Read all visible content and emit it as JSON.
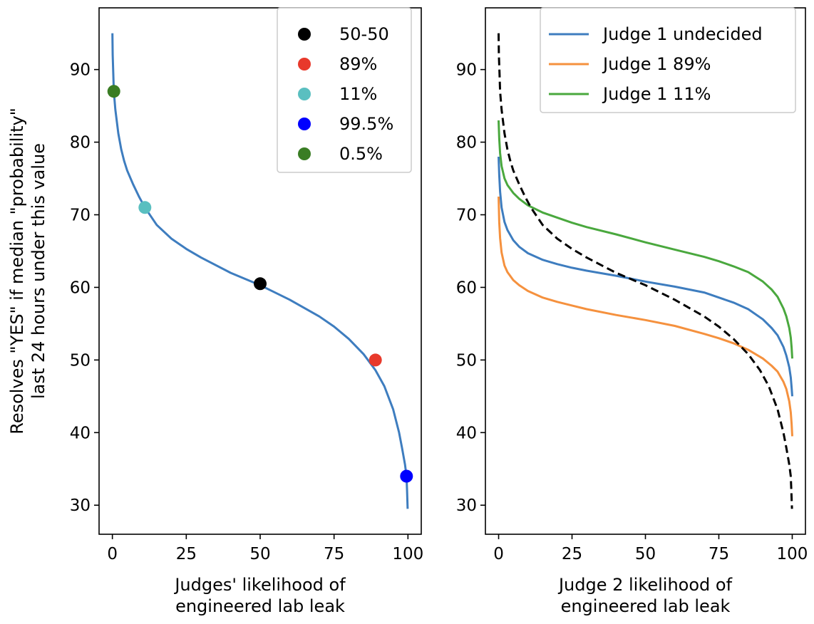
{
  "chart_data": [
    {
      "type": "line",
      "title": "",
      "xlabel": [
        "Judges' likelihood of",
        "engineered lab leak"
      ],
      "ylabel": [
        "Resolves \"YES\" if median \"probability\"",
        "last 24 hours under this value"
      ],
      "xlim": [
        -4.5,
        104.5
      ],
      "ylim": [
        26,
        98.5
      ],
      "xticks": [
        0,
        25,
        50,
        75,
        100
      ],
      "yticks": [
        30,
        40,
        50,
        60,
        70,
        80,
        90
      ],
      "grid": false,
      "legend_position": "top-right",
      "series": [
        {
          "kind": "line",
          "color": "#3e7dbf",
          "x": [
            0,
            0.05,
            0.1,
            0.3,
            0.5,
            1,
            2,
            3,
            4,
            5,
            7,
            9,
            11,
            15,
            20,
            25,
            30,
            40,
            50,
            60,
            70,
            75,
            80,
            85,
            89,
            92,
            95,
            97,
            98,
            99,
            99.5,
            99.7,
            99.9
          ],
          "y": [
            95,
            93.5,
            92,
            89.5,
            87,
            84.5,
            81.2,
            79,
            77.4,
            76.1,
            74.2,
            72.5,
            71,
            68.6,
            66.7,
            65.3,
            64.1,
            62,
            60.3,
            58.3,
            56,
            54.6,
            52.9,
            50.8,
            48.6,
            46.4,
            43.2,
            40,
            37.9,
            35.6,
            34,
            32,
            29.5
          ]
        },
        {
          "kind": "point",
          "name": "50-50",
          "x": 50,
          "y": 60.5,
          "color": "#000000"
        },
        {
          "kind": "point",
          "name": "89%",
          "x": 89,
          "y": 50,
          "color": "#e8392b"
        },
        {
          "kind": "point",
          "name": "11%",
          "x": 11,
          "y": 71,
          "color": "#5abfc0"
        },
        {
          "kind": "point",
          "name": "99.5%",
          "x": 99.5,
          "y": 34,
          "color": "#0000ff"
        },
        {
          "kind": "point",
          "name": "0.5%",
          "x": 0.5,
          "y": 87,
          "color": "#3a7d24"
        }
      ],
      "legend": [
        {
          "label": "50-50",
          "color": "#000000"
        },
        {
          "label": "89%",
          "color": "#e8392b"
        },
        {
          "label": "11%",
          "color": "#5abfc0"
        },
        {
          "label": "99.5%",
          "color": "#0000ff"
        },
        {
          "label": "0.5%",
          "color": "#3a7d24"
        }
      ]
    },
    {
      "type": "line",
      "title": "",
      "xlabel": [
        "Judge 2 likelihood of",
        "engineered lab leak"
      ],
      "ylabel": [],
      "xlim": [
        -4.5,
        104.5
      ],
      "ylim": [
        26,
        98.5
      ],
      "xticks": [
        0,
        25,
        50,
        75,
        100
      ],
      "yticks": [
        30,
        40,
        50,
        60,
        70,
        80,
        90
      ],
      "grid": false,
      "legend_position": "top-right",
      "series": [
        {
          "name": "Judge 1 undecided",
          "color": "#3e7dbf",
          "dash": false,
          "x": [
            0,
            0.2,
            0.5,
            1,
            2,
            3,
            5,
            7,
            10,
            15,
            20,
            25,
            30,
            40,
            50,
            60,
            70,
            75,
            80,
            85,
            90,
            93,
            95,
            97,
            98,
            99,
            99.5,
            99.8,
            100
          ],
          "y": [
            78,
            75.5,
            73.2,
            71,
            69,
            67.9,
            66.5,
            65.6,
            64.7,
            63.8,
            63.2,
            62.7,
            62.3,
            61.6,
            60.8,
            60.1,
            59.3,
            58.6,
            57.9,
            57,
            55.6,
            54.4,
            53.4,
            51.8,
            50.6,
            49,
            47.6,
            46.2,
            45
          ]
        },
        {
          "name": "Judge 1 89%",
          "color": "#f5913e",
          "dash": false,
          "x": [
            0,
            0.2,
            0.5,
            1,
            2,
            3,
            5,
            7,
            10,
            15,
            20,
            25,
            30,
            40,
            50,
            60,
            70,
            75,
            80,
            85,
            90,
            93,
            95,
            97,
            98,
            99,
            99.5,
            99.8,
            100
          ],
          "y": [
            72.5,
            69,
            66.8,
            64.8,
            63,
            62.1,
            61,
            60.3,
            59.5,
            58.6,
            58,
            57.5,
            57,
            56.2,
            55.5,
            54.7,
            53.6,
            53,
            52.3,
            51.4,
            50.2,
            49.2,
            48.4,
            47,
            46,
            44.3,
            42.8,
            41.2,
            39.5
          ]
        },
        {
          "name": "Judge 1 11%",
          "color": "#4aa83e",
          "dash": false,
          "x": [
            0,
            0.2,
            0.5,
            1,
            2,
            3,
            5,
            7,
            10,
            15,
            20,
            25,
            30,
            40,
            50,
            60,
            70,
            75,
            80,
            85,
            90,
            93,
            95,
            97,
            98,
            99,
            99.5,
            99.8,
            100
          ],
          "y": [
            83,
            80.5,
            78.5,
            76.7,
            75,
            74.1,
            73,
            72.2,
            71.3,
            70.3,
            69.6,
            68.9,
            68.3,
            67.3,
            66.2,
            65.2,
            64.2,
            63.6,
            62.9,
            62.1,
            60.8,
            59.7,
            58.7,
            57.1,
            56,
            54.4,
            53.1,
            51.7,
            50.2
          ]
        },
        {
          "name": "",
          "color": "#000000",
          "dash": true,
          "x": [
            0,
            0.05,
            0.1,
            0.3,
            0.5,
            1,
            2,
            3,
            4,
            5,
            7,
            9,
            11,
            15,
            20,
            25,
            30,
            40,
            50,
            60,
            70,
            75,
            80,
            85,
            89,
            92,
            95,
            97,
            98,
            99,
            99.5,
            99.7,
            99.9
          ],
          "y": [
            95,
            93.5,
            92,
            89.5,
            87,
            84.5,
            81.2,
            79,
            77.4,
            76.1,
            74.2,
            72.5,
            71,
            68.6,
            66.7,
            65.3,
            64.1,
            62,
            60.3,
            58.3,
            56,
            54.6,
            52.9,
            50.8,
            48.6,
            46.4,
            43.2,
            40,
            37.9,
            35.6,
            34,
            32,
            29.5
          ]
        }
      ],
      "legend": [
        {
          "label": "Judge 1 undecided",
          "color": "#3e7dbf"
        },
        {
          "label": "Judge 1 89%",
          "color": "#f5913e"
        },
        {
          "label": "Judge 1 11%",
          "color": "#4aa83e"
        }
      ]
    }
  ]
}
